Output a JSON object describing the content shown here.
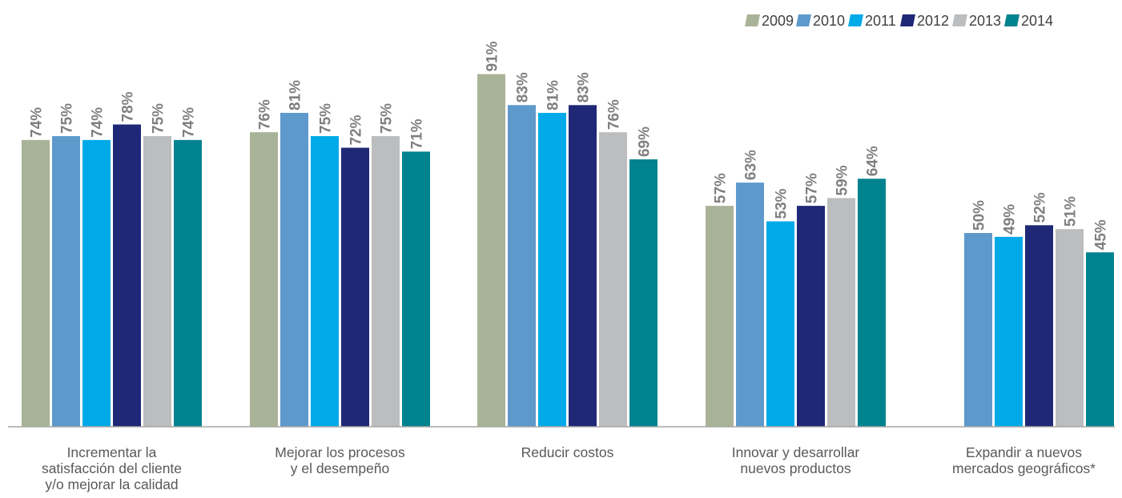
{
  "chart_data": {
    "type": "bar",
    "categories": [
      [
        "Incrementar la",
        "satisfacción del cliente",
        "y/o mejorar la calidad"
      ],
      [
        "Mejorar los procesos",
        "y el desempeño"
      ],
      [
        "Reducir costos"
      ],
      [
        "Innovar y desarrollar",
        "nuevos productos"
      ],
      [
        "Expandir a nuevos",
        "mercados geográficos*"
      ]
    ],
    "series": [
      {
        "name": "2009",
        "color": "#a9b397",
        "values": [
          74,
          76,
          91,
          57,
          null
        ]
      },
      {
        "name": "2010",
        "color": "#5e99cc",
        "values": [
          75,
          81,
          83,
          63,
          50
        ]
      },
      {
        "name": "2011",
        "color": "#00a9e8",
        "values": [
          74,
          75,
          81,
          53,
          49
        ]
      },
      {
        "name": "2012",
        "color": "#1f2876",
        "values": [
          78,
          72,
          83,
          57,
          52
        ]
      },
      {
        "name": "2013",
        "color": "#bcbdbf",
        "values": [
          75,
          75,
          76,
          59,
          51
        ]
      },
      {
        "name": "2014",
        "color": "#00828f",
        "values": [
          74,
          71,
          69,
          64,
          45
        ]
      }
    ],
    "value_suffix": "%",
    "ylim": [
      0,
      100
    ],
    "grid": false,
    "legend": "top-right",
    "label_color": "#7f7f7f",
    "axis_color": "#a6a6a6"
  }
}
